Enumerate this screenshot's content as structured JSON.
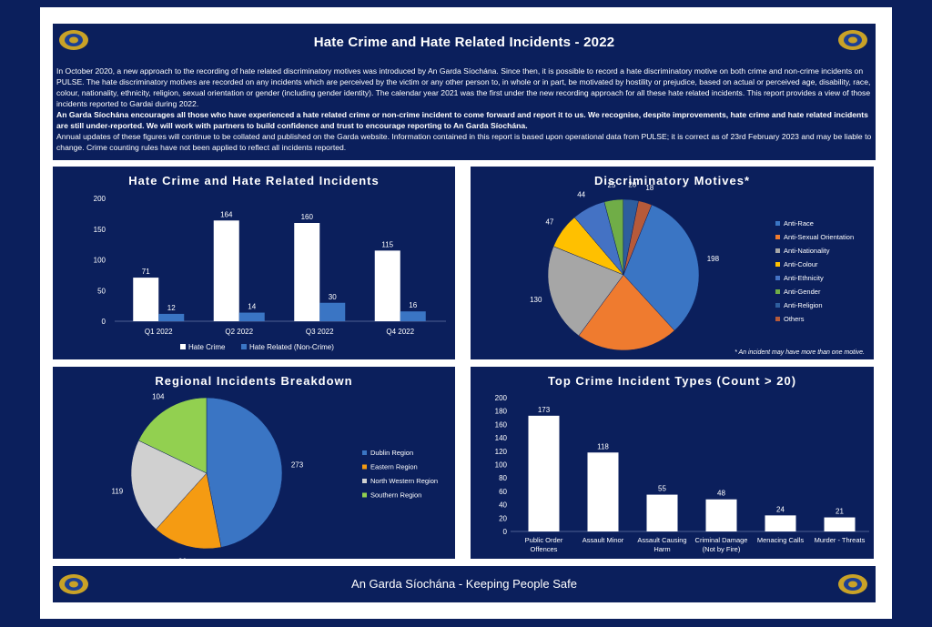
{
  "header": {
    "title": "Hate Crime and Hate Related Incidents - 2022",
    "paragraphs": [
      {
        "text": "In October 2020, a new approach to the recording of hate related discriminatory motives was introduced by An Garda Síochána.  Since then, it is possible to record a hate discriminatory motive on both crime and non-crime incidents on PULSE.  The hate discriminatory motives are recorded on any incidents which are perceived by the victim or any other person to, in whole or in part, be motivated by hostility or prejudice, based on actual or perceived age, disability, race, colour, nationality, ethnicity, religion, sexual orientation or gender (including gender identity).  The calendar year 2021 was the first under the new recording approach for all these hate related incidents.  This report provides a view of those incidents reported to Gardai during 2022.",
        "bold": false
      },
      {
        "text": "An Garda Síochána encourages all those who have experienced a hate related crime or non-crime incident to come forward and report it to us.  We recognise, despite improvements, hate crime and hate related incidents are still under-reported.  We will work with partners to build confidence and trust to encourage reporting to An Garda Síochána.",
        "bold": true
      },
      {
        "text": "Annual updates of these figures will continue to be collated and published on the Garda website.  Information contained in this report is based upon operational data from PULSE; it is correct as of 23rd February 2023 and may be liable to change.  Crime counting rules have not been applied to reflect all incidents reported.",
        "bold": false
      }
    ]
  },
  "footer": {
    "text": "An Garda Síochána - Keeping People Safe"
  },
  "colors": {
    "navy": "#0b1f5c",
    "white": "#ffffff",
    "badge_gold": "#c9a227",
    "badge_blue": "#1c3f94"
  },
  "chart_data": [
    {
      "type": "bar",
      "title": "Hate Crime and Hate Related Incidents",
      "categories": [
        "Q1 2022",
        "Q2 2022",
        "Q3 2022",
        "Q4 2022"
      ],
      "series": [
        {
          "name": "Hate Crime",
          "values": [
            71,
            164,
            160,
            115
          ],
          "color": "#ffffff"
        },
        {
          "name": "Hate Related (Non-Crime)",
          "values": [
            12,
            14,
            30,
            16
          ],
          "color": "#3a75c4"
        }
      ],
      "yticks": [
        0,
        50,
        100,
        150,
        200
      ],
      "ylim": [
        0,
        200
      ],
      "legend": "bottom"
    },
    {
      "type": "pie",
      "title": "Discriminatory  Motives*",
      "labels": [
        "Anti-Race",
        "Anti-Sexual Orientation",
        "Anti-Nationality",
        "Anti-Colour",
        "Anti-Ethnicity",
        "Anti-Gender",
        "Anti-Religion",
        "Others"
      ],
      "values": [
        198,
        135,
        130,
        47,
        44,
        25,
        20,
        18
      ],
      "colors": [
        "#3a75c4",
        "#ef7b2f",
        "#a6a6a6",
        "#ffc000",
        "#4472c4",
        "#70ad47",
        "#2e5e9e",
        "#b65a3a"
      ],
      "legend": "right",
      "note": "* An incident may have more than one motive."
    },
    {
      "type": "pie",
      "title": "Regional Incidents Breakdown",
      "labels": [
        "Dublin Region",
        "Eastern Region",
        "North Western Region",
        "Southern Region"
      ],
      "values": [
        273,
        86,
        119,
        104
      ],
      "colors": [
        "#3a75c4",
        "#f59b12",
        "#d0d0d0",
        "#92d050"
      ],
      "legend": "right"
    },
    {
      "type": "bar",
      "title": "Top Crime Incident Types (Count > 20)",
      "categories": [
        [
          "Public Order",
          "Offences"
        ],
        [
          "Assault Minor"
        ],
        [
          "Assault Causing",
          "Harm"
        ],
        [
          "Criminal Damage",
          "(Not by Fire)"
        ],
        [
          "Menacing Calls"
        ],
        [
          "Murder - Threats"
        ]
      ],
      "values": [
        173,
        118,
        55,
        48,
        24,
        21
      ],
      "color": "#ffffff",
      "yticks": [
        0,
        20,
        40,
        60,
        80,
        100,
        120,
        140,
        160,
        180,
        200
      ],
      "ylim": [
        0,
        200
      ]
    }
  ]
}
